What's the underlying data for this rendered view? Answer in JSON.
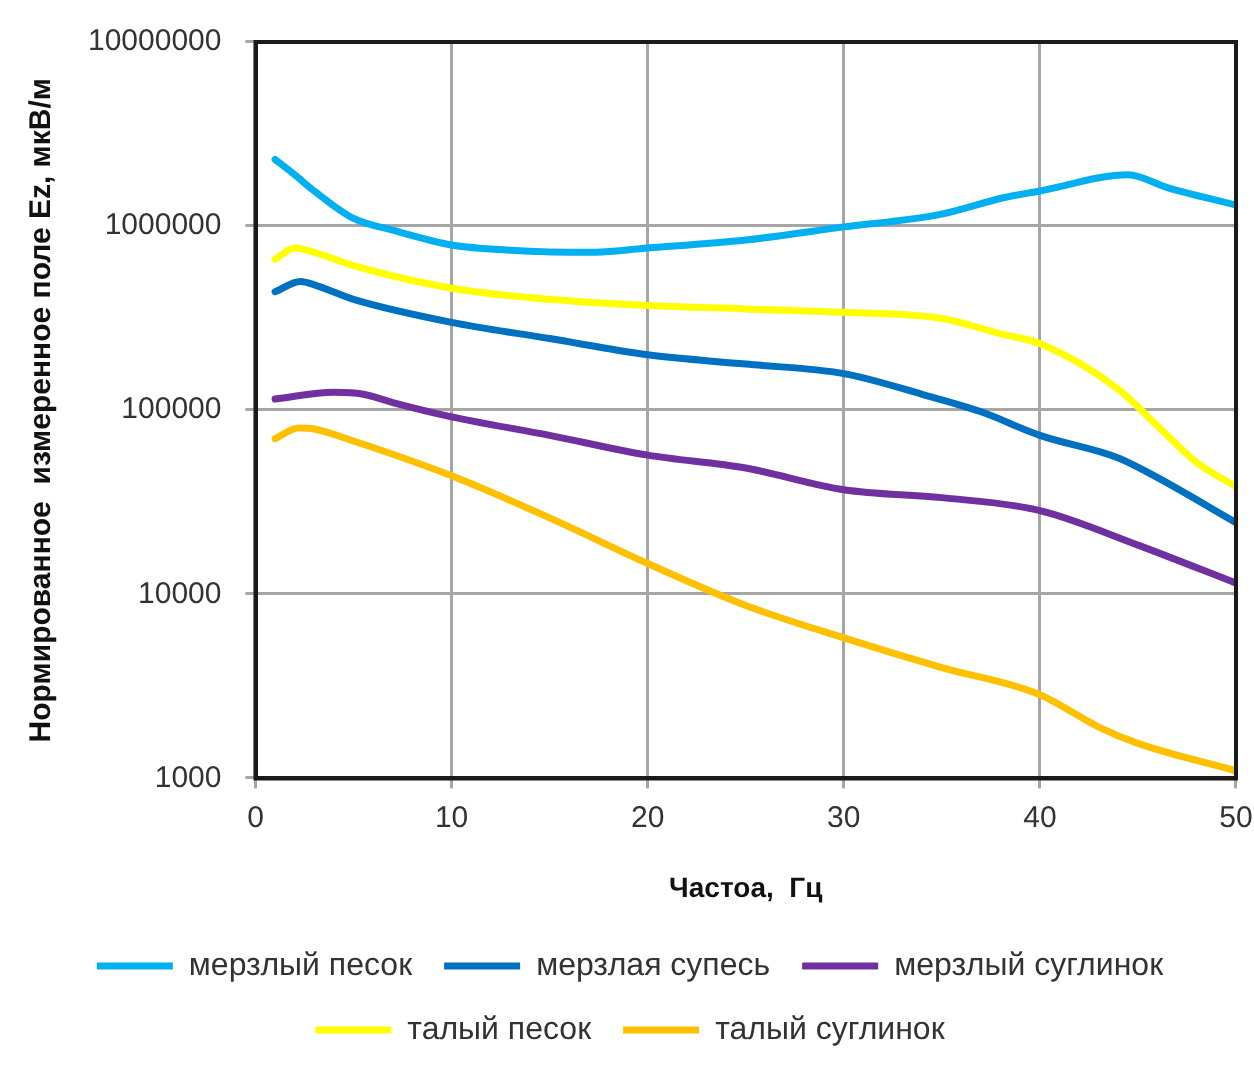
{
  "chart_data": {
    "type": "line",
    "xlabel": "Частоа,  Гц",
    "ylabel": "Нормированное  измеренное поле Ez, мкВ/м",
    "xlim": [
      0,
      50
    ],
    "xticks": [
      0,
      10,
      20,
      30,
      40,
      50
    ],
    "ylim": [
      1000,
      10000000
    ],
    "yticks": [
      1000,
      10000,
      100000,
      1000000,
      10000000
    ],
    "log": "y",
    "grid": true,
    "legend": "bottom",
    "line_style": "solid",
    "series": [
      {
        "name": "мерзлый песок",
        "color": "#00b0f0",
        "x": [
          1,
          2,
          3,
          5,
          7,
          10,
          13,
          17,
          20,
          25,
          30,
          34.8,
          38.2,
          40,
          44.5,
          46.5,
          50
        ],
        "values": [
          2300000,
          1900000,
          1550000,
          1100000,
          950000,
          790000,
          740000,
          720000,
          760000,
          840000,
          990000,
          1150000,
          1430000,
          1550000,
          1900000,
          1620000,
          1300000
        ]
      },
      {
        "name": "мерзлая супесь",
        "color": "#0070c0",
        "x": [
          1,
          2.3,
          3,
          5,
          10,
          15,
          20,
          25,
          30,
          34,
          37,
          40,
          44,
          46,
          50
        ],
        "values": [
          440000,
          500000,
          480000,
          400000,
          300000,
          245000,
          200000,
          178000,
          158000,
          122000,
          98000,
          73000,
          55000,
          43000,
          24500
        ]
      },
      {
        "name": "мерзлый суглинок",
        "color": "#7030a0",
        "x": [
          1,
          4,
          5.5,
          7,
          10,
          15,
          20,
          25,
          30,
          35,
          40,
          45,
          50
        ],
        "values": [
          115000,
          125000,
          122000,
          110000,
          92000,
          73000,
          57000,
          48500,
          37000,
          33500,
          28500,
          18500,
          11500
        ]
      },
      {
        "name": "талый песок",
        "color": "#ffff00",
        "x": [
          1,
          2,
          3,
          5,
          10,
          15,
          20,
          25,
          30,
          35,
          38,
          40,
          44,
          46,
          48,
          50
        ],
        "values": [
          660000,
          760000,
          720000,
          610000,
          460000,
          400000,
          370000,
          355000,
          340000,
          315000,
          260000,
          230000,
          130000,
          82000,
          52000,
          38500
        ]
      },
      {
        "name": "талый суглинок",
        "color": "#ffc000",
        "x": [
          1,
          2.2,
          3,
          5,
          10,
          15,
          20,
          25,
          30,
          35,
          40,
          43,
          45,
          50
        ],
        "values": [
          70000,
          80000,
          79000,
          68000,
          44000,
          26000,
          14700,
          8700,
          5800,
          4000,
          2850,
          1900,
          1550,
          1100
        ]
      }
    ]
  }
}
